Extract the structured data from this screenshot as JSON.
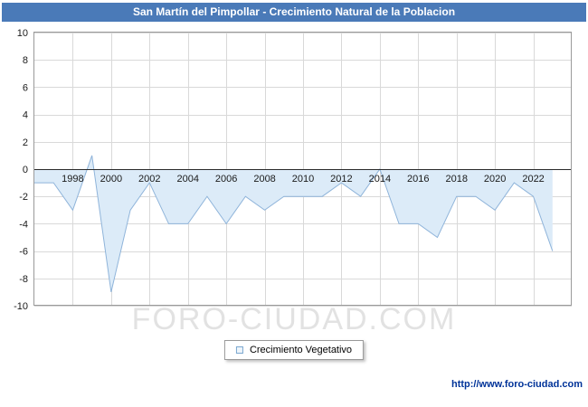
{
  "title_bar": {
    "title": "San Martín del Pimpollar - Crecimiento Natural de la Poblacion"
  },
  "legend": {
    "label": "Crecimiento Vegetativo"
  },
  "watermark_text": "FORO-CIUDAD.COM",
  "footer": {
    "link": "http://www.foro-ciudad.com"
  },
  "colors": {
    "title_bar_bg": "#4a7ab8",
    "title_text": "#ffffff",
    "line": "#8fb4da",
    "area_fill": "#dcebf8",
    "grid": "#d9d9d9",
    "plot_border": "#9a9a9a",
    "zero_line": "#2a2a2a",
    "tick_text": "#1a1a1a",
    "watermark": "#e2e2e2",
    "footer_link": "#003399",
    "legend_marker_border": "#7aa7d0",
    "legend_marker_fill": "#eef5fb"
  },
  "chart_data": {
    "type": "area",
    "title": "San Martín del Pimpollar - Crecimiento Natural de la Poblacion",
    "xlabel": "",
    "ylabel": "",
    "xlim": [
      1996,
      2024
    ],
    "ylim": [
      -10,
      10
    ],
    "y_ticks": [
      10,
      8,
      6,
      4,
      2,
      0,
      -2,
      -4,
      -6,
      -8,
      -10
    ],
    "x_tick_years": [
      1998,
      2000,
      2002,
      2004,
      2006,
      2008,
      2010,
      2012,
      2014,
      2016,
      2018,
      2020,
      2022
    ],
    "grid": true,
    "baseline": 0,
    "legend_position": "bottom",
    "series": [
      {
        "name": "Crecimiento Vegetativo",
        "x": [
          1996,
          1997,
          1998,
          1999,
          2000,
          2001,
          2002,
          2003,
          2004,
          2005,
          2006,
          2007,
          2008,
          2009,
          2010,
          2011,
          2012,
          2013,
          2014,
          2015,
          2016,
          2017,
          2018,
          2019,
          2020,
          2021,
          2022,
          2023
        ],
        "values": [
          -1,
          -1,
          -3,
          1,
          -9,
          -3,
          -1,
          -4,
          -4,
          -2,
          -4,
          -2,
          -3,
          -2,
          -2,
          -2,
          -1,
          -2,
          0,
          -4,
          -4,
          -5,
          -2,
          -2,
          -3,
          -1,
          -2,
          -6
        ]
      }
    ]
  }
}
